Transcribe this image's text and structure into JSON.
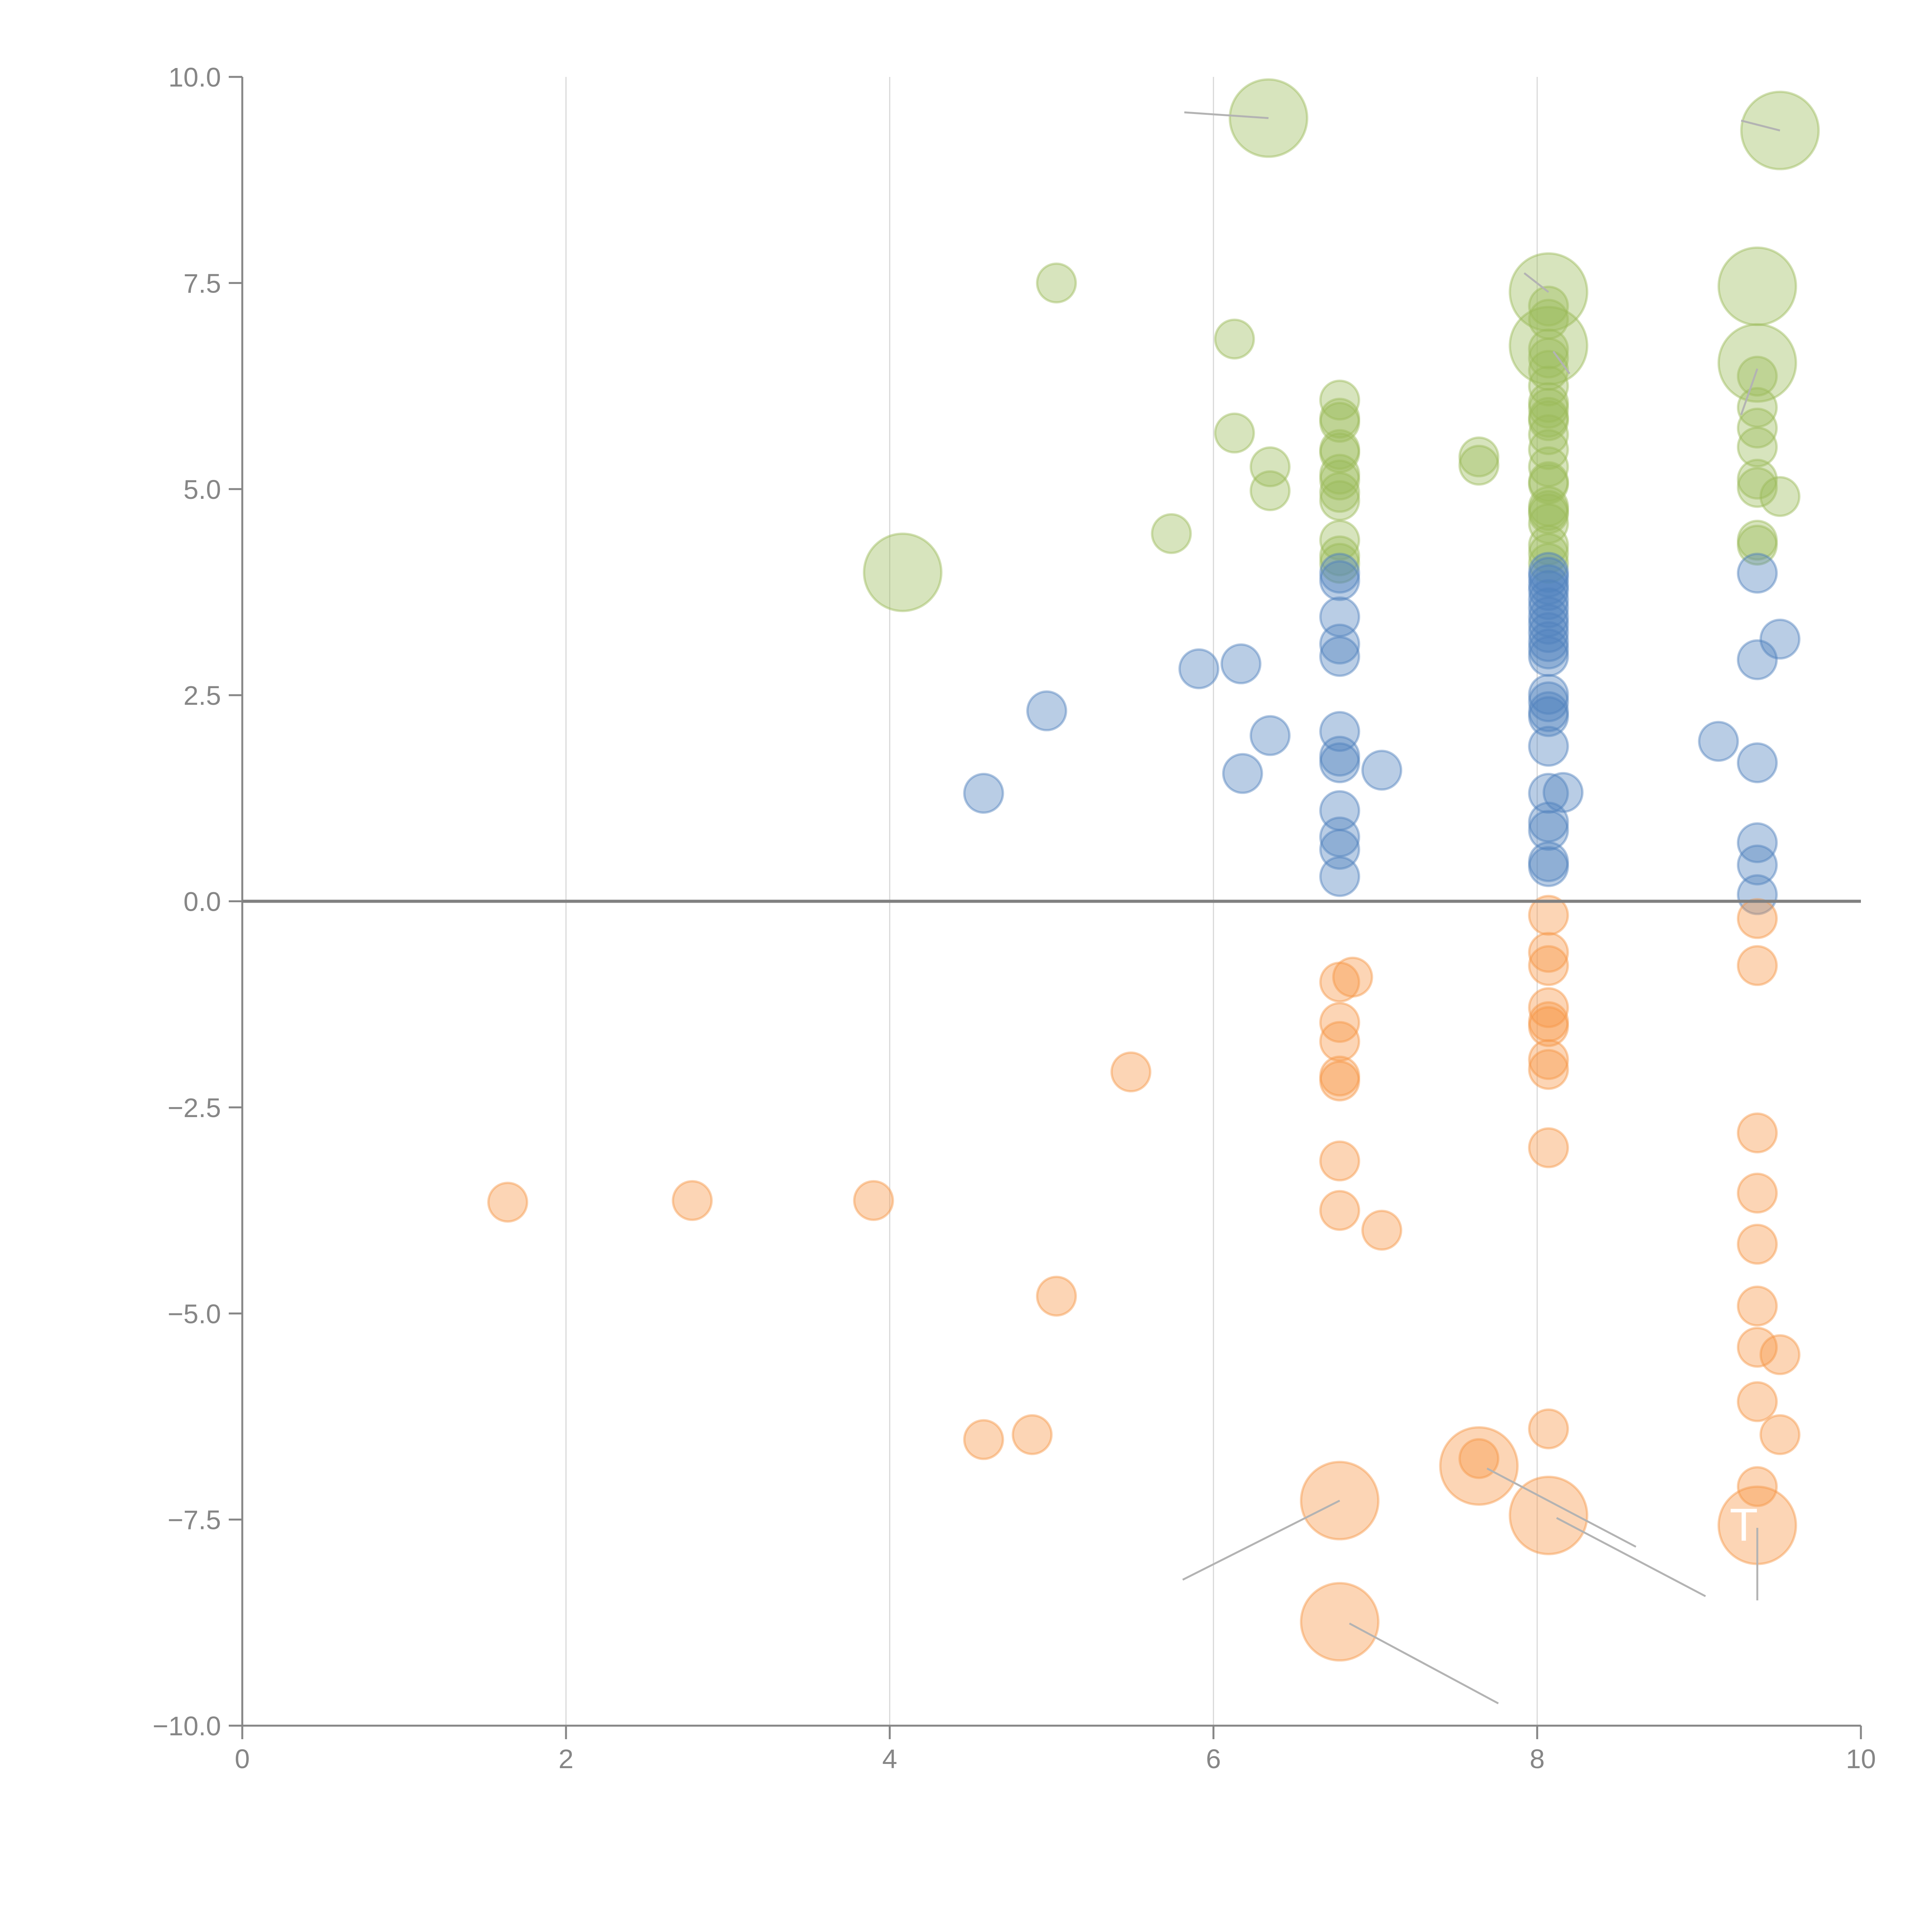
{
  "chart_data": {
    "type": "scatter",
    "subtype": "bubble",
    "title": "",
    "xlabel": "",
    "ylabel": "",
    "xlim": [
      0,
      10
    ],
    "ylim": [
      -10,
      10
    ],
    "x_ticks": [
      "0",
      "2",
      "4",
      "6",
      "8",
      "10"
    ],
    "x_tick_values": [
      0,
      2,
      4,
      6,
      8,
      10
    ],
    "y_ticks": [
      "10.0",
      "7.5",
      "5.0",
      "2.5",
      "0.0",
      "−2.5",
      "−5.0",
      "−7.5",
      "−10.0"
    ],
    "y_tick_values": [
      10,
      7.5,
      5,
      2.5,
      0,
      -2.5,
      -5,
      -7.5,
      -10
    ],
    "grid": "vertical",
    "zero_line": true,
    "legend": "none",
    "annotations": [
      {
        "text": "T",
        "x": 9.36,
        "y": -7.57
      }
    ],
    "series": [
      {
        "name": "green",
        "color": "#9bbb59",
        "points": [
          [
            5.03,
            7.5,
            1
          ],
          [
            6.13,
            6.82,
            1
          ],
          [
            6.13,
            5.68,
            1
          ],
          [
            6.35,
            5.27,
            1
          ],
          [
            6.35,
            4.98,
            1
          ],
          [
            5.74,
            4.46,
            1
          ],
          [
            7.64,
            5.39,
            1
          ],
          [
            7.64,
            5.29,
            1
          ],
          [
            6.78,
            6.08,
            1
          ],
          [
            6.78,
            5.86,
            1
          ],
          [
            6.78,
            5.81,
            1
          ],
          [
            6.78,
            5.48,
            1
          ],
          [
            6.78,
            5.44,
            1
          ],
          [
            6.78,
            5.18,
            1
          ],
          [
            6.78,
            5.11,
            1
          ],
          [
            6.78,
            4.96,
            1
          ],
          [
            6.78,
            4.86,
            1
          ],
          [
            6.78,
            4.38,
            1
          ],
          [
            6.78,
            4.19,
            1
          ],
          [
            6.78,
            4.1,
            1
          ],
          [
            8.07,
            7.22,
            1
          ],
          [
            8.07,
            7.06,
            1
          ],
          [
            8.07,
            6.7,
            1
          ],
          [
            8.07,
            6.59,
            1
          ],
          [
            8.07,
            6.44,
            1
          ],
          [
            8.07,
            6.25,
            1
          ],
          [
            8.07,
            6.05,
            1
          ],
          [
            8.07,
            5.98,
            1
          ],
          [
            8.07,
            5.87,
            1
          ],
          [
            8.07,
            5.83,
            1
          ],
          [
            8.07,
            5.66,
            1
          ],
          [
            8.07,
            5.48,
            1
          ],
          [
            8.07,
            5.27,
            1
          ],
          [
            8.07,
            5.09,
            1
          ],
          [
            8.07,
            5.06,
            1
          ],
          [
            8.07,
            4.79,
            1
          ],
          [
            8.07,
            4.74,
            1
          ],
          [
            8.07,
            4.7,
            1
          ],
          [
            8.07,
            4.58,
            1
          ],
          [
            8.07,
            4.32,
            1
          ],
          [
            8.07,
            4.22,
            1
          ],
          [
            8.07,
            4.1,
            1
          ],
          [
            9.36,
            6.37,
            1
          ],
          [
            9.36,
            5.99,
            1
          ],
          [
            9.36,
            5.74,
            1
          ],
          [
            9.36,
            5.51,
            1
          ],
          [
            9.36,
            5.12,
            1
          ],
          [
            9.36,
            5.02,
            1
          ],
          [
            9.36,
            4.38,
            1
          ],
          [
            9.36,
            4.32,
            1
          ],
          [
            9.5,
            4.91,
            1
          ],
          [
            6.34,
            9.5,
            4
          ],
          [
            9.5,
            9.35,
            4
          ],
          [
            8.07,
            7.39,
            4
          ],
          [
            8.07,
            6.74,
            4
          ],
          [
            9.36,
            7.46,
            4
          ],
          [
            9.36,
            6.53,
            4
          ],
          [
            4.08,
            3.99,
            4
          ]
        ]
      },
      {
        "name": "blue",
        "color": "#4f81bd",
        "points": [
          [
            4.58,
            1.31,
            1
          ],
          [
            4.97,
            2.31,
            1
          ],
          [
            5.91,
            2.82,
            1
          ],
          [
            6.17,
            2.88,
            1
          ],
          [
            6.18,
            1.55,
            1
          ],
          [
            6.35,
            2.01,
            1
          ],
          [
            7.04,
            1.59,
            1
          ],
          [
            6.78,
            3.98,
            1
          ],
          [
            6.78,
            3.89,
            1
          ],
          [
            6.78,
            3.45,
            1
          ],
          [
            6.78,
            3.12,
            1
          ],
          [
            6.78,
            2.97,
            1
          ],
          [
            6.78,
            2.06,
            1
          ],
          [
            6.78,
            1.76,
            1
          ],
          [
            6.78,
            1.68,
            1
          ],
          [
            6.78,
            1.1,
            1
          ],
          [
            6.78,
            0.78,
            1
          ],
          [
            6.78,
            0.63,
            1
          ],
          [
            6.78,
            0.3,
            1
          ],
          [
            8.07,
            3.99,
            1
          ],
          [
            8.07,
            3.93,
            1
          ],
          [
            8.07,
            3.84,
            1
          ],
          [
            8.07,
            3.77,
            1
          ],
          [
            8.07,
            3.66,
            1
          ],
          [
            8.07,
            3.56,
            1
          ],
          [
            8.07,
            3.45,
            1
          ],
          [
            8.07,
            3.36,
            1
          ],
          [
            8.07,
            3.26,
            1
          ],
          [
            8.07,
            3.15,
            1
          ],
          [
            8.07,
            3.06,
            1
          ],
          [
            8.07,
            2.97,
            1
          ],
          [
            8.07,
            2.51,
            1
          ],
          [
            8.07,
            2.42,
            1
          ],
          [
            8.07,
            2.3,
            1
          ],
          [
            8.07,
            2.24,
            1
          ],
          [
            8.07,
            1.88,
            1
          ],
          [
            8.07,
            1.31,
            1
          ],
          [
            8.07,
            0.96,
            1
          ],
          [
            8.07,
            0.86,
            1
          ],
          [
            8.07,
            0.48,
            1
          ],
          [
            8.07,
            0.42,
            1
          ],
          [
            8.16,
            1.32,
            1
          ],
          [
            9.36,
            3.98,
            1
          ],
          [
            9.36,
            2.93,
            1
          ],
          [
            9.36,
            1.68,
            1
          ],
          [
            9.36,
            0.71,
            1
          ],
          [
            9.36,
            0.44,
            1
          ],
          [
            9.36,
            0.08,
            1
          ],
          [
            9.5,
            3.18,
            1
          ],
          [
            9.12,
            1.94,
            1
          ]
        ]
      },
      {
        "name": "orange",
        "color": "#f79646",
        "points": [
          [
            1.64,
            -3.65,
            1
          ],
          [
            2.78,
            -3.63,
            1
          ],
          [
            3.9,
            -3.63,
            1
          ],
          [
            5.49,
            -2.07,
            1
          ],
          [
            5.03,
            -4.79,
            1
          ],
          [
            4.58,
            -6.53,
            1
          ],
          [
            4.88,
            -6.47,
            1
          ],
          [
            7.04,
            -3.99,
            1
          ],
          [
            6.86,
            -0.92,
            1
          ],
          [
            6.78,
            -0.98,
            1
          ],
          [
            6.78,
            -1.47,
            1
          ],
          [
            6.78,
            -1.7,
            1
          ],
          [
            6.78,
            -2.12,
            1
          ],
          [
            6.78,
            -2.18,
            1
          ],
          [
            6.78,
            -3.15,
            1
          ],
          [
            6.78,
            -3.75,
            1
          ],
          [
            8.07,
            -0.17,
            1
          ],
          [
            8.07,
            -0.62,
            1
          ],
          [
            8.07,
            -0.78,
            1
          ],
          [
            8.07,
            -1.29,
            1
          ],
          [
            8.07,
            -1.46,
            1
          ],
          [
            8.07,
            -1.52,
            1
          ],
          [
            8.07,
            -1.92,
            1
          ],
          [
            8.07,
            -2.04,
            1
          ],
          [
            8.07,
            -2.99,
            1
          ],
          [
            8.07,
            -6.4,
            1
          ],
          [
            9.36,
            -0.21,
            1
          ],
          [
            9.36,
            -0.78,
            1
          ],
          [
            9.36,
            -2.81,
            1
          ],
          [
            9.36,
            -3.54,
            1
          ],
          [
            9.36,
            -4.16,
            1
          ],
          [
            9.36,
            -4.91,
            1
          ],
          [
            9.36,
            -5.41,
            1
          ],
          [
            9.36,
            -6.07,
            1
          ],
          [
            9.36,
            -7.1,
            1
          ],
          [
            9.5,
            -5.5,
            1
          ],
          [
            9.5,
            -6.47,
            1
          ],
          [
            7.64,
            -6.76,
            1
          ],
          [
            6.78,
            -7.27,
            4
          ],
          [
            6.78,
            -8.74,
            4
          ],
          [
            7.64,
            -6.85,
            4
          ],
          [
            8.07,
            -7.45,
            4
          ],
          [
            9.36,
            -7.57,
            4
          ]
        ]
      }
    ],
    "leader_lines": [
      {
        "from": [
          6.78,
          -7.27
        ],
        "to": [
          5.81,
          -8.23
        ]
      },
      {
        "from": [
          6.84,
          -8.76
        ],
        "to": [
          7.76,
          -9.73
        ]
      },
      {
        "from": [
          7.69,
          -6.88
        ],
        "to": [
          8.61,
          -7.83
        ]
      },
      {
        "from": [
          8.12,
          -7.48
        ],
        "to": [
          9.04,
          -8.43
        ]
      },
      {
        "from": [
          9.36,
          -7.6
        ],
        "to": [
          9.36,
          -8.48
        ]
      },
      {
        "from": [
          6.34,
          9.5
        ],
        "to": [
          5.82,
          9.57
        ]
      },
      {
        "from": [
          9.5,
          9.35
        ],
        "to": [
          9.26,
          9.47
        ]
      },
      {
        "from": [
          8.07,
          7.39
        ],
        "to": [
          7.92,
          7.62
        ]
      },
      {
        "from": [
          8.1,
          6.67
        ],
        "to": [
          8.2,
          6.4
        ]
      },
      {
        "from": [
          9.36,
          6.46
        ],
        "to": [
          9.26,
          5.9
        ]
      }
    ]
  }
}
